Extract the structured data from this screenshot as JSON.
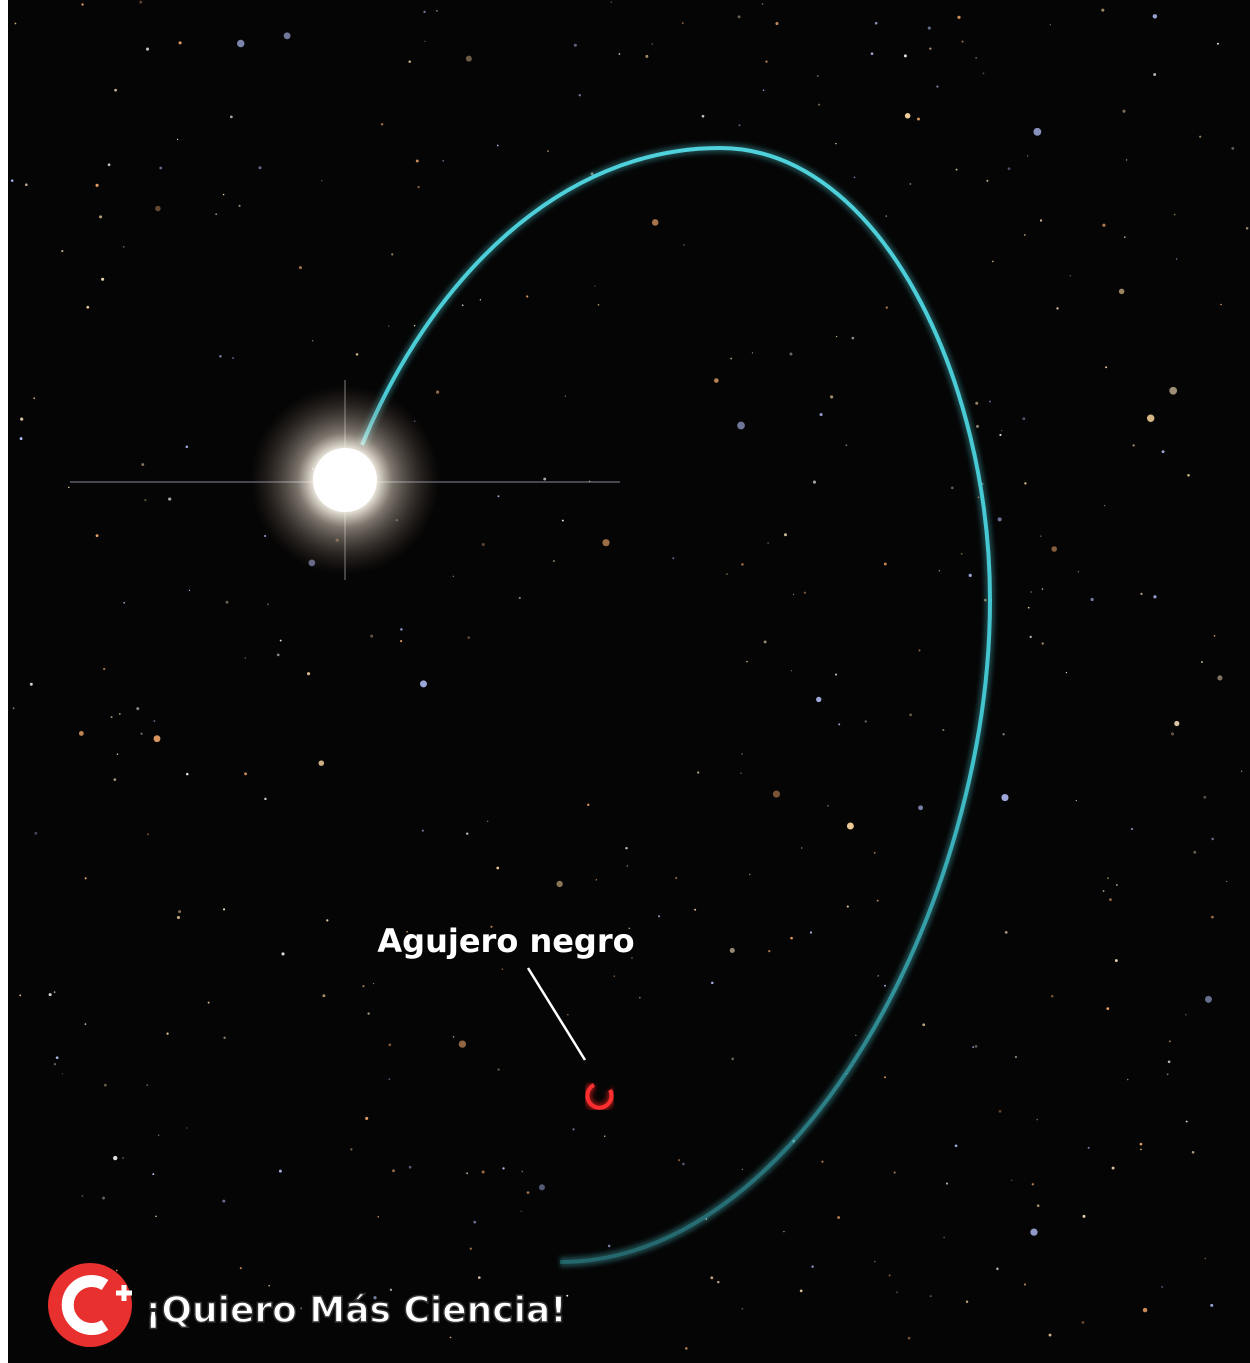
{
  "annotation": {
    "label": "Agujero negro"
  },
  "logo": {
    "text": "¡Quiero Más Ciencia!"
  }
}
